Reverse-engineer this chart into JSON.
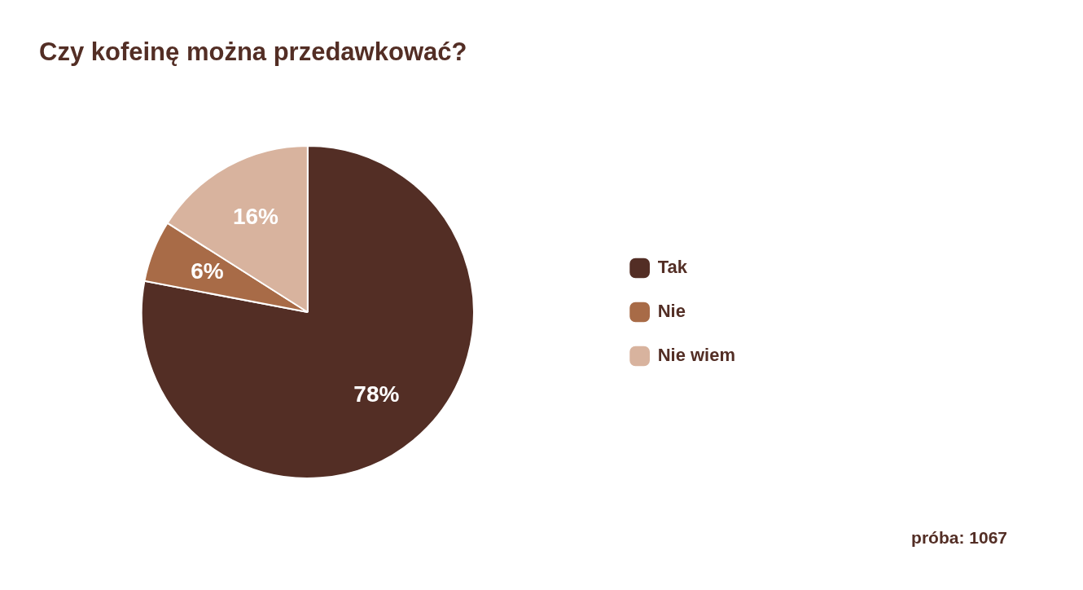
{
  "chart_data": {
    "type": "pie",
    "title": "Czy kofeinę można przedawkować?",
    "categories": [
      "Tak",
      "Nie",
      "Nie wiem"
    ],
    "values": [
      78,
      6,
      16
    ],
    "value_labels": [
      "78%",
      "6%",
      "16%"
    ],
    "colors": [
      "#532e25",
      "#a86b47",
      "#d8b39e"
    ],
    "legend": "right",
    "annotations": [
      "próba: 1067"
    ]
  }
}
